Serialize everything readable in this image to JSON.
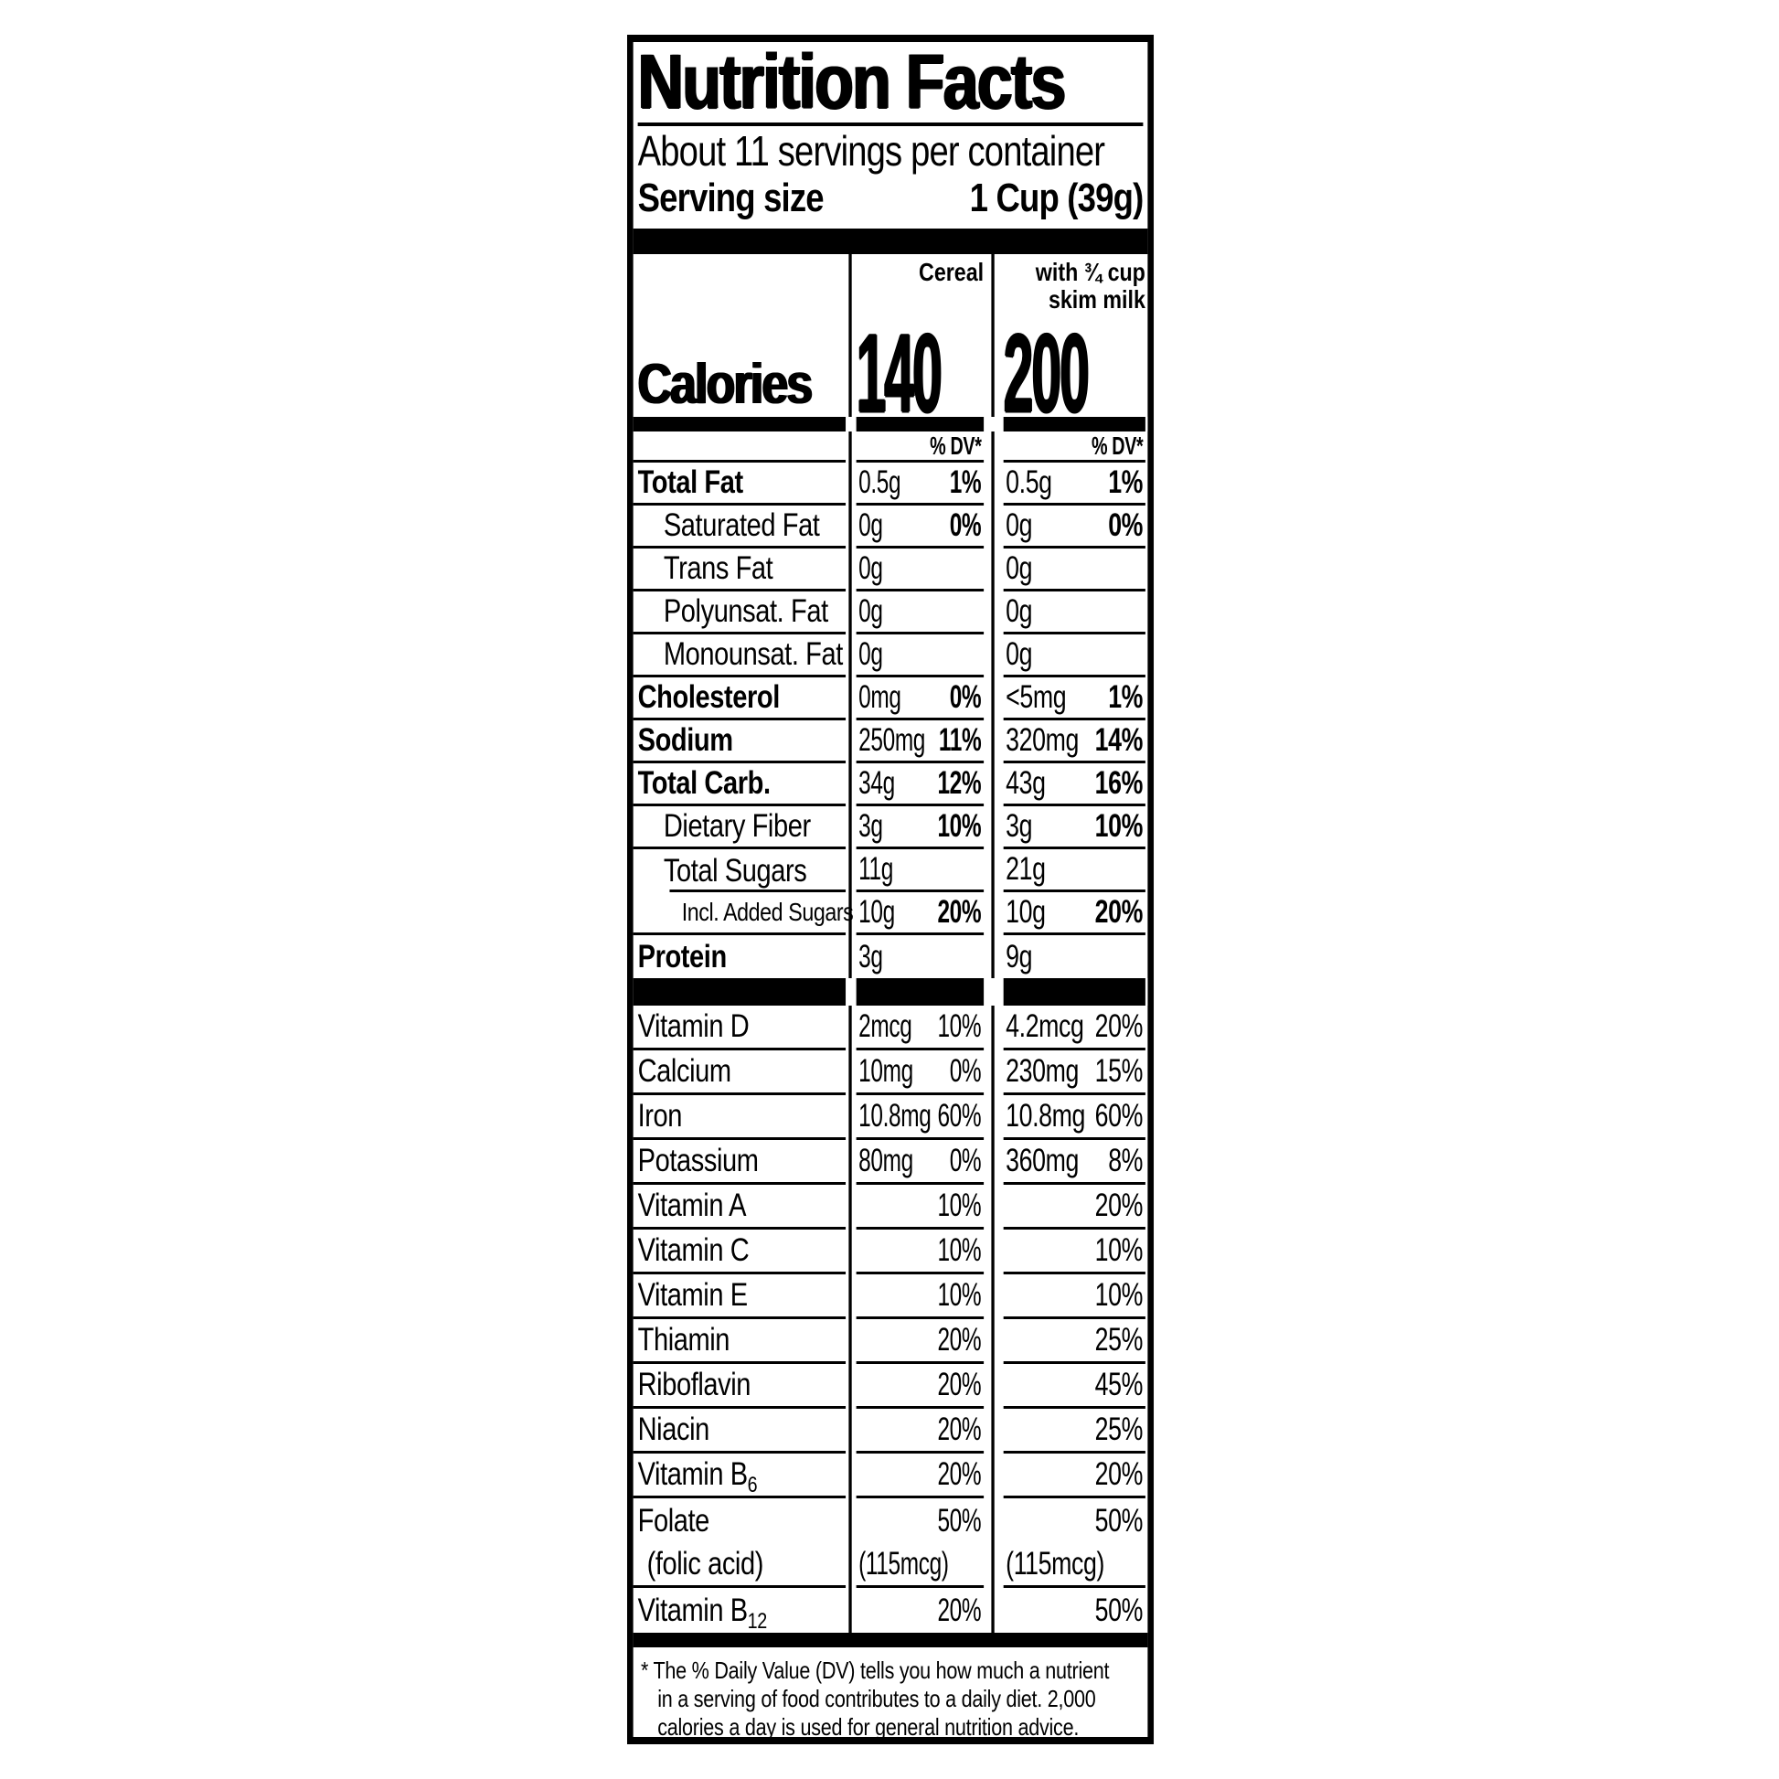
{
  "colors": {
    "ink": "#000000",
    "paper": "#ffffff"
  },
  "label": {
    "title": "Nutrition Facts",
    "servings_per_container": "About 11 servings per container",
    "serving_size": {
      "label": "Serving size",
      "value": "1 Cup (39g)"
    },
    "columns": {
      "cereal": "Cereal",
      "milk_line1": "with ¾ cup",
      "milk_line2": "skim milk"
    },
    "calories": {
      "label": "Calories",
      "cereal": "140",
      "milk": "200"
    },
    "dv_header": "% DV*",
    "nutrients": [
      {
        "label": "Total Fat",
        "bold": true,
        "cereal_amt": "0.5g",
        "cereal_dv": "1%",
        "milk_amt": "0.5g",
        "milk_dv": "1%"
      },
      {
        "label": "Saturated Fat",
        "indent": 1,
        "cereal_amt": "0g",
        "cereal_dv": "0%",
        "milk_amt": "0g",
        "milk_dv": "0%"
      },
      {
        "label": "Trans Fat",
        "indent": 1,
        "cereal_amt": "0g",
        "milk_amt": "0g"
      },
      {
        "label": "Polyunsat. Fat",
        "indent": 1,
        "cereal_amt": "0g",
        "milk_amt": "0g"
      },
      {
        "label": "Monounsat. Fat",
        "indent": 1,
        "cereal_amt": "0g",
        "milk_amt": "0g"
      },
      {
        "label": "Cholesterol",
        "bold": true,
        "cereal_amt": "0mg",
        "cereal_dv": "0%",
        "milk_amt": "<5mg",
        "milk_dv": "1%"
      },
      {
        "label": "Sodium",
        "bold": true,
        "cereal_amt": "250mg",
        "cereal_dv": "11%",
        "milk_amt": "320mg",
        "milk_dv": "14%"
      },
      {
        "label": "Total Carb.",
        "bold": true,
        "cereal_amt": "34g",
        "cereal_dv": "12%",
        "milk_amt": "43g",
        "milk_dv": "16%"
      },
      {
        "label": "Dietary Fiber",
        "indent": 1,
        "cereal_amt": "3g",
        "cereal_dv": "10%",
        "milk_amt": "3g",
        "milk_dv": "10%"
      },
      {
        "label": "Total Sugars",
        "indent": 1,
        "cereal_amt": "11g",
        "milk_amt": "21g",
        "label_rule_indent": true
      },
      {
        "label": "Incl. Added Sugars",
        "indent": 2,
        "small": true,
        "cereal_amt": "10g",
        "cereal_dv": "20%",
        "milk_amt": "10g",
        "milk_dv": "20%"
      },
      {
        "label": "Protein",
        "bold": true,
        "cereal_amt": "3g",
        "milk_amt": "9g",
        "rule": false
      }
    ],
    "vitamins": [
      {
        "label": "Vitamin D",
        "cereal_amt": "2mcg",
        "cereal_dv": "10%",
        "milk_amt": "4.2mcg",
        "milk_dv": "20%"
      },
      {
        "label": "Calcium",
        "cereal_amt": "10mg",
        "cereal_dv": "0%",
        "milk_amt": "230mg",
        "milk_dv": "15%"
      },
      {
        "label": "Iron",
        "cereal_amt": "10.8mg",
        "cereal_dv": "60%",
        "milk_amt": "10.8mg",
        "milk_dv": "60%"
      },
      {
        "label": "Potassium",
        "cereal_amt": "80mg",
        "cereal_dv": "0%",
        "milk_amt": "360mg",
        "milk_dv": "8%"
      },
      {
        "label": "Vitamin A",
        "cereal_dv": "10%",
        "milk_dv": "20%"
      },
      {
        "label": "Vitamin C",
        "cereal_dv": "10%",
        "milk_dv": "10%"
      },
      {
        "label": "Vitamin E",
        "cereal_dv": "10%",
        "milk_dv": "10%"
      },
      {
        "label": "Thiamin",
        "cereal_dv": "20%",
        "milk_dv": "25%"
      },
      {
        "label": "Riboflavin",
        "cereal_dv": "20%",
        "milk_dv": "45%"
      },
      {
        "label": "Niacin",
        "cereal_dv": "20%",
        "milk_dv": "25%"
      },
      {
        "label": "Vitamin B",
        "sub": "6",
        "cereal_dv": "20%",
        "milk_dv": "20%"
      },
      {
        "label": "Folate",
        "cereal_dv": "50%",
        "milk_dv": "50%",
        "rule": false
      },
      {
        "label": "(folic acid)",
        "pad": true,
        "cereal_amt": "(115mcg)",
        "milk_amt": "(115mcg)"
      },
      {
        "label": "Vitamin B",
        "sub": "12",
        "cereal_dv": "20%",
        "milk_dv": "50%",
        "rule": false
      }
    ],
    "footnote": {
      "line1": "* The % Daily Value (DV) tells you how much a nutrient",
      "line2": "in a serving of food contributes to a daily diet. 2,000",
      "line3": "calories a day is used for general nutrition advice."
    }
  }
}
